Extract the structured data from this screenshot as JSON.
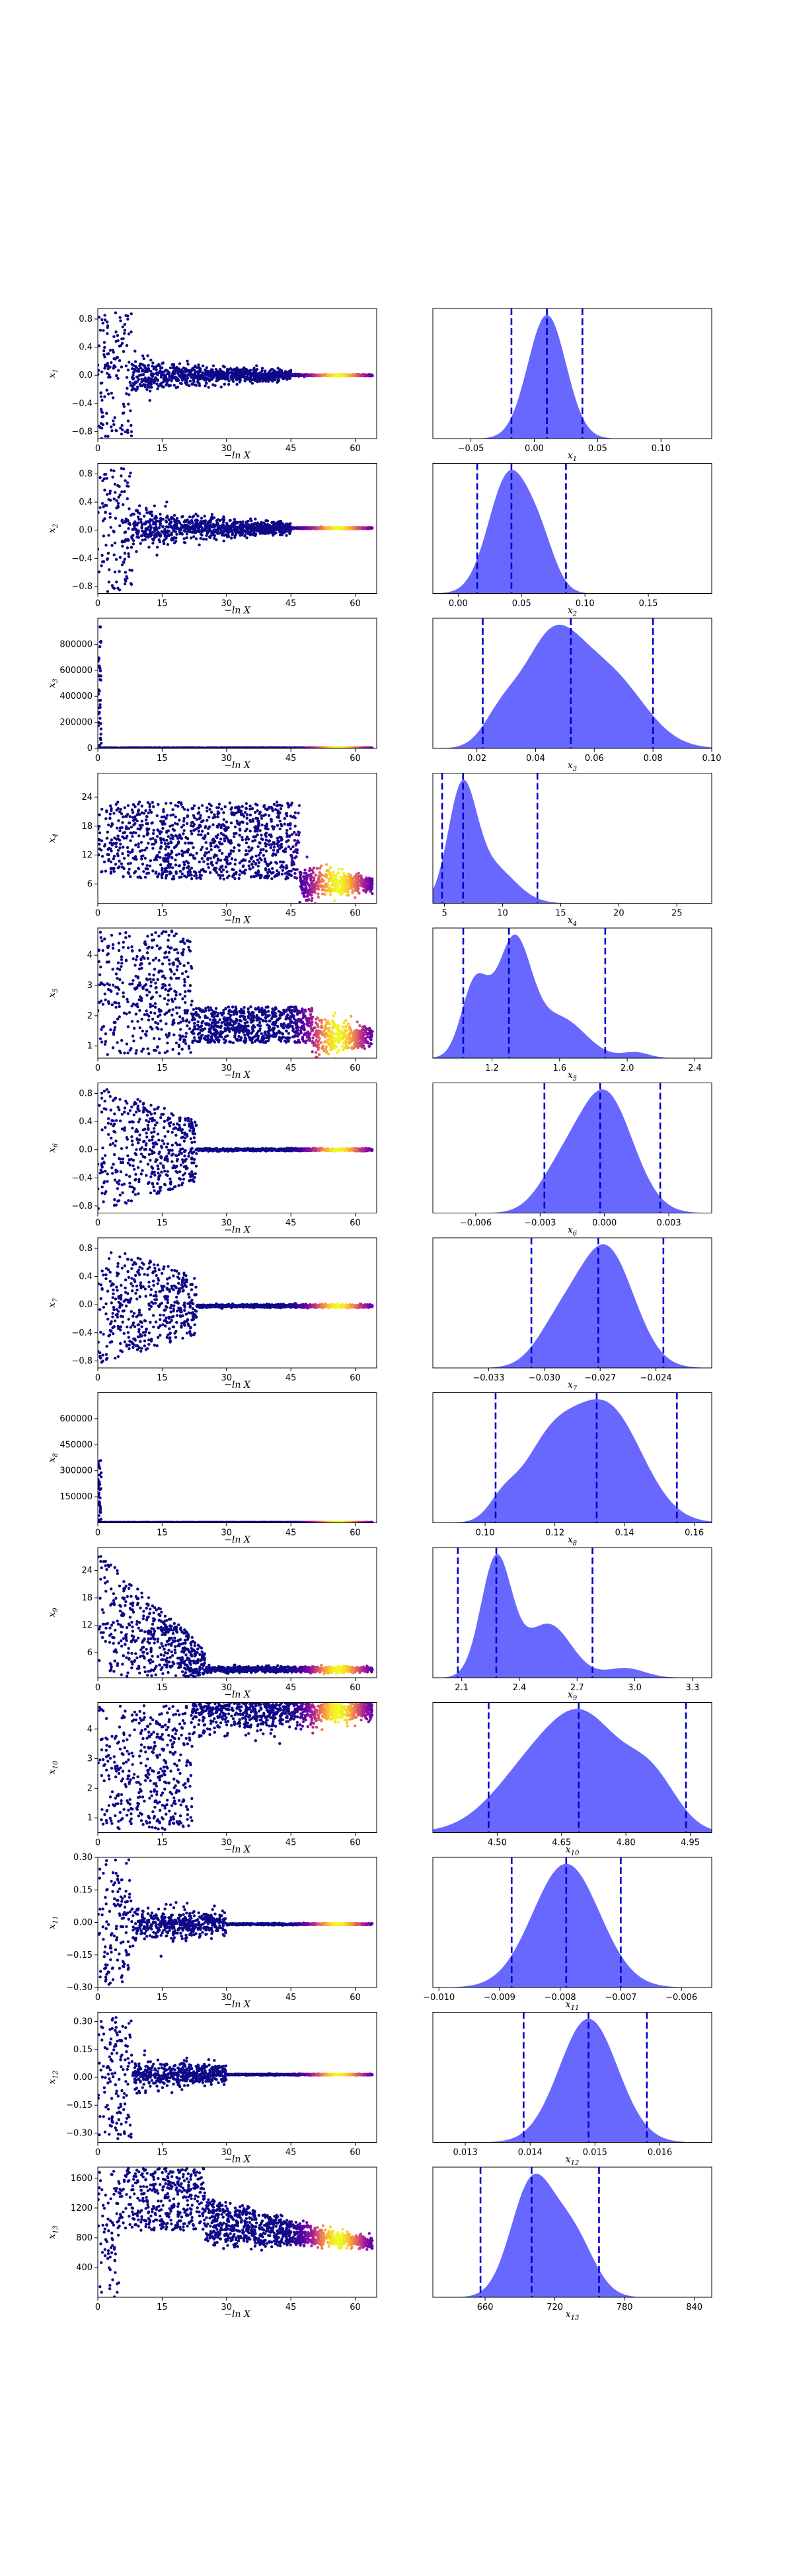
{
  "figure": {
    "kind": "dynesty traceplot",
    "left_xlabel": "−ln X",
    "trace_colormap": [
      "#0d0887",
      "#5c01a6",
      "#9c179e",
      "#cc4778",
      "#ed7953",
      "#fdb42f",
      "#f0f921"
    ],
    "density_color": "#5b5bff",
    "quantile_line_color": "#0000cc"
  },
  "chart_data": [
    {
      "type": "scatter",
      "param": "x1",
      "ylabel": "x1",
      "xlabel": "−ln X",
      "xlim": [
        0,
        65
      ],
      "xticks": [
        "0",
        "15",
        "30",
        "45",
        "60"
      ],
      "ylim": [
        -0.9,
        0.95
      ],
      "yticks": [
        -0.8,
        -0.4,
        0.0,
        0.4,
        0.8
      ],
      "ytick_labels": [
        "−0.8",
        "−0.4",
        "0.0",
        "0.4",
        "0.8"
      ],
      "trace": {
        "kind": "funnel",
        "early": 0.9,
        "mid": 0.25,
        "final": 0.0,
        "final_spread": 0.01,
        "mid_end": 45
      },
      "density": {
        "type": "area",
        "xlabel": "x1",
        "xlim": [
          -0.08,
          0.14
        ],
        "xticks": [
          -0.05,
          0.0,
          0.05,
          0.1
        ],
        "xtick_labels": [
          "−0.05",
          "0.00",
          "0.05",
          "0.10"
        ],
        "peaks": [
          [
            0.01,
            0.015,
            1
          ]
        ],
        "quantiles": [
          -0.018,
          0.01,
          0.038
        ]
      }
    },
    {
      "type": "scatter",
      "param": "x2",
      "ylabel": "x2",
      "xlabel": "−ln X",
      "xlim": [
        0,
        65
      ],
      "xticks": [
        "0",
        "15",
        "30",
        "45",
        "60"
      ],
      "ylim": [
        -0.9,
        0.95
      ],
      "yticks": [
        -0.8,
        -0.4,
        0.0,
        0.4,
        0.8
      ],
      "ytick_labels": [
        "−0.8",
        "−0.4",
        "0.0",
        "0.4",
        "0.8"
      ],
      "trace": {
        "kind": "funnel",
        "early": 0.9,
        "mid": 0.3,
        "final": 0.03,
        "final_spread": 0.01,
        "mid_end": 45
      },
      "density": {
        "type": "area",
        "xlabel": "x2",
        "xlim": [
          -0.02,
          0.2
        ],
        "xticks": [
          0.0,
          0.05,
          0.1,
          0.15
        ],
        "xtick_labels": [
          "0.00",
          "0.05",
          "0.10",
          "0.15"
        ],
        "peaks": [
          [
            0.04,
            0.016,
            1
          ],
          [
            0.065,
            0.012,
            0.35
          ]
        ],
        "quantiles": [
          0.015,
          0.042,
          0.085
        ]
      }
    },
    {
      "type": "scatter",
      "param": "x3",
      "ylabel": "x3",
      "xlabel": "−ln X",
      "xlim": [
        0,
        65
      ],
      "xticks": [
        "0",
        "15",
        "30",
        "45",
        "60"
      ],
      "ylim": [
        0,
        1000000
      ],
      "yticks": [
        0,
        200000,
        400000,
        600000,
        800000
      ],
      "ytick_labels": [
        "0",
        "200000",
        "400000",
        "600000",
        "800000"
      ],
      "trace": {
        "kind": "spike",
        "spike_top": 950000,
        "base": 0.05,
        "base_spread": 0.02
      },
      "density": {
        "type": "area",
        "xlabel": "x3",
        "xlim": [
          0.005,
          0.1
        ],
        "xticks": [
          0.02,
          0.04,
          0.06,
          0.08,
          0.1
        ],
        "xtick_labels": [
          "0.02",
          "0.04",
          "0.06",
          "0.08",
          "0.10"
        ],
        "peaks": [
          [
            0.045,
            0.01,
            1
          ],
          [
            0.065,
            0.012,
            0.7
          ],
          [
            0.028,
            0.006,
            0.25
          ]
        ],
        "quantiles": [
          0.022,
          0.052,
          0.08
        ]
      }
    },
    {
      "type": "scatter",
      "param": "x4",
      "ylabel": "x4",
      "xlabel": "−ln X",
      "xlim": [
        0,
        65
      ],
      "xticks": [
        "0",
        "15",
        "30",
        "45",
        "60"
      ],
      "ylim": [
        2,
        29
      ],
      "yticks": [
        6,
        12,
        18,
        24
      ],
      "ytick_labels": [
        "6",
        "12",
        "18",
        "24"
      ],
      "trace": {
        "kind": "band",
        "lo": 3,
        "hi": 28,
        "mid_center": 15,
        "mid_spread": 8,
        "final": 6,
        "final_spread": 1.5,
        "mid_end": 47
      },
      "density": {
        "type": "area",
        "xlabel": "x4",
        "xlim": [
          4,
          28
        ],
        "xticks": [
          5,
          10,
          15,
          20,
          25
        ],
        "xtick_labels": [
          "5",
          "10",
          "15",
          "20",
          "25"
        ],
        "peaks": [
          [
            6.5,
            1.2,
            1
          ],
          [
            9,
            2,
            0.35
          ]
        ],
        "quantiles": [
          4.8,
          6.6,
          13
        ]
      }
    },
    {
      "type": "scatter",
      "param": "x5",
      "ylabel": "x5",
      "xlabel": "−ln X",
      "xlim": [
        0,
        65
      ],
      "xticks": [
        "0",
        "15",
        "30",
        "45",
        "60"
      ],
      "ylim": [
        0.6,
        4.9
      ],
      "yticks": [
        1,
        2,
        3,
        4
      ],
      "ytick_labels": [
        "1",
        "2",
        "3",
        "4"
      ],
      "trace": {
        "kind": "band",
        "lo": 0.7,
        "hi": 4.8,
        "mid_center": 1.7,
        "mid_spread": 0.6,
        "final": 1.3,
        "final_spread": 0.3,
        "mid_end": 50,
        "early_end": 22
      },
      "density": {
        "type": "area",
        "xlabel": "x5",
        "xlim": [
          0.85,
          2.5
        ],
        "xticks": [
          1.2,
          1.6,
          2.0,
          2.4
        ],
        "xtick_labels": [
          "1.2",
          "1.6",
          "2.0",
          "2.4"
        ],
        "peaks": [
          [
            1.1,
            0.08,
            0.65
          ],
          [
            1.33,
            0.1,
            1
          ],
          [
            1.6,
            0.15,
            0.35
          ],
          [
            2.05,
            0.08,
            0.05
          ]
        ],
        "quantiles": [
          1.03,
          1.3,
          1.87
        ]
      }
    },
    {
      "type": "scatter",
      "param": "x6",
      "ylabel": "x6",
      "xlabel": "−ln X",
      "xlim": [
        0,
        65
      ],
      "xticks": [
        "0",
        "15",
        "30",
        "45",
        "60"
      ],
      "ylim": [
        -0.9,
        0.95
      ],
      "yticks": [
        -0.8,
        -0.4,
        0.0,
        0.4,
        0.8
      ],
      "ytick_labels": [
        "−0.8",
        "−0.4",
        "0.0",
        "0.4",
        "0.8"
      ],
      "trace": {
        "kind": "cutoff",
        "early": 0.9,
        "cut": 23,
        "final": 0.0,
        "final_spread": 0.008
      },
      "density": {
        "type": "area",
        "xlabel": "x6",
        "xlim": [
          -0.008,
          0.005
        ],
        "xticks": [
          -0.006,
          -0.003,
          0.0,
          0.003
        ],
        "xtick_labels": [
          "−0.006",
          "−0.003",
          "0.000",
          "0.003"
        ],
        "peaks": [
          [
            0.0,
            0.0013,
            1
          ],
          [
            -0.0022,
            0.001,
            0.25
          ]
        ],
        "quantiles": [
          -0.0028,
          -0.0002,
          0.0026
        ]
      }
    },
    {
      "type": "scatter",
      "param": "x7",
      "ylabel": "x7",
      "xlabel": "−ln X",
      "xlim": [
        0,
        65
      ],
      "xticks": [
        "0",
        "15",
        "30",
        "45",
        "60"
      ],
      "ylim": [
        -0.9,
        0.95
      ],
      "yticks": [
        -0.8,
        -0.4,
        0.0,
        0.4,
        0.8
      ],
      "ytick_labels": [
        "−0.8",
        "−0.4",
        "0.0",
        "0.4",
        "0.8"
      ],
      "trace": {
        "kind": "cutoff",
        "early": 0.85,
        "cut": 23,
        "final": -0.02,
        "final_spread": 0.01
      },
      "density": {
        "type": "area",
        "xlabel": "x7",
        "xlim": [
          -0.036,
          -0.021
        ],
        "xticks": [
          -0.033,
          -0.03,
          -0.027,
          -0.024
        ],
        "xtick_labels": [
          "−0.033",
          "−0.030",
          "−0.027",
          "−0.024"
        ],
        "peaks": [
          [
            -0.0267,
            0.0015,
            1
          ],
          [
            -0.0293,
            0.0012,
            0.3
          ]
        ],
        "quantiles": [
          -0.0307,
          -0.0271,
          -0.0236
        ]
      }
    },
    {
      "type": "scatter",
      "param": "x8",
      "ylabel": "x8",
      "xlabel": "−ln X",
      "xlim": [
        0,
        65
      ],
      "xticks": [
        "0",
        "15",
        "30",
        "45",
        "60"
      ],
      "ylim": [
        0,
        750000
      ],
      "yticks": [
        150000,
        300000,
        450000,
        600000
      ],
      "ytick_labels": [
        "150000",
        "300000",
        "450000",
        "600000"
      ],
      "trace": {
        "kind": "spike",
        "spike_top": 360000,
        "base": 0.13,
        "base_spread": 0.02
      },
      "density": {
        "type": "area",
        "xlabel": "x8",
        "xlim": [
          0.085,
          0.165
        ],
        "xticks": [
          0.1,
          0.12,
          0.14,
          0.16
        ],
        "xtick_labels": [
          "0.10",
          "0.12",
          "0.14",
          "0.16"
        ],
        "peaks": [
          [
            0.135,
            0.01,
            1
          ],
          [
            0.118,
            0.008,
            0.6
          ],
          [
            0.105,
            0.004,
            0.15
          ]
        ],
        "quantiles": [
          0.103,
          0.132,
          0.155
        ]
      }
    },
    {
      "type": "scatter",
      "param": "x9",
      "ylabel": "x9",
      "xlabel": "−ln X",
      "xlim": [
        0,
        65
      ],
      "xticks": [
        "0",
        "15",
        "30",
        "45",
        "60"
      ],
      "ylim": [
        0.5,
        29
      ],
      "yticks": [
        6,
        12,
        18,
        24
      ],
      "ytick_labels": [
        "6",
        "12",
        "18",
        "24"
      ],
      "trace": {
        "kind": "cutoff",
        "early": 28,
        "early_lo": 0.7,
        "cut": 25,
        "final": 2.3,
        "final_spread": 0.3,
        "decay": true
      },
      "density": {
        "type": "area",
        "xlabel": "x9",
        "xlim": [
          1.95,
          3.4
        ],
        "xticks": [
          2.1,
          2.4,
          2.7,
          3.0,
          3.3
        ],
        "xtick_labels": [
          "2.1",
          "2.4",
          "2.7",
          "3.0",
          "3.3"
        ],
        "peaks": [
          [
            2.28,
            0.08,
            1
          ],
          [
            2.55,
            0.12,
            0.45
          ],
          [
            2.95,
            0.1,
            0.08
          ]
        ],
        "quantiles": [
          2.08,
          2.28,
          2.78
        ]
      }
    },
    {
      "type": "scatter",
      "param": "x10",
      "ylabel": "x10",
      "xlabel": "−ln X",
      "xlim": [
        0,
        65
      ],
      "xticks": [
        "0",
        "15",
        "30",
        "45",
        "60"
      ],
      "ylim": [
        0.5,
        4.9
      ],
      "yticks": [
        1,
        2,
        3,
        4
      ],
      "ytick_labels": [
        "1",
        "2",
        "3",
        "4"
      ],
      "trace": {
        "kind": "rise",
        "lo": 0.6,
        "hi": 4.8,
        "final": 4.65,
        "final_spread": 0.15,
        "rise_end": 22
      },
      "density": {
        "type": "area",
        "xlabel": "x10",
        "xlim": [
          4.35,
          5.0
        ],
        "xticks": [
          4.5,
          4.65,
          4.8,
          4.95
        ],
        "xtick_labels": [
          "4.50",
          "4.65",
          "4.80",
          "4.95"
        ],
        "peaks": [
          [
            4.6,
            0.1,
            0.85
          ],
          [
            4.72,
            0.08,
            0.95
          ],
          [
            4.86,
            0.06,
            0.6
          ]
        ],
        "quantiles": [
          4.48,
          4.69,
          4.94
        ]
      }
    },
    {
      "type": "scatter",
      "param": "x11",
      "ylabel": "x11",
      "xlabel": "−ln X",
      "xlim": [
        0,
        65
      ],
      "xticks": [
        "0",
        "15",
        "30",
        "45",
        "60"
      ],
      "ylim": [
        -0.3,
        0.3
      ],
      "yticks": [
        -0.3,
        -0.15,
        0.0,
        0.15,
        0.3
      ],
      "ytick_labels": [
        "−0.30",
        "−0.15",
        "0.00",
        "0.15",
        "0.30"
      ],
      "trace": {
        "kind": "funnel",
        "early": 0.29,
        "mid": 0.05,
        "final": -0.008,
        "final_spread": 0.003,
        "mid_end": 30
      },
      "density": {
        "type": "area",
        "xlabel": "x11",
        "xlim": [
          -0.0101,
          -0.0055
        ],
        "xticks": [
          -0.01,
          -0.009,
          -0.008,
          -0.007,
          -0.006
        ],
        "xtick_labels": [
          "−0.010",
          "−0.009",
          "−0.008",
          "−0.007",
          "−0.006"
        ],
        "peaks": [
          [
            -0.0079,
            0.00055,
            1
          ]
        ],
        "quantiles": [
          -0.0088,
          -0.0079,
          -0.007
        ]
      }
    },
    {
      "type": "scatter",
      "param": "x12",
      "ylabel": "x12",
      "xlabel": "−ln X",
      "xlim": [
        0,
        65
      ],
      "xticks": [
        "0",
        "15",
        "30",
        "45",
        "60"
      ],
      "ylim": [
        -0.35,
        0.35
      ],
      "yticks": [
        -0.3,
        -0.15,
        0.0,
        0.15,
        0.3
      ],
      "ytick_labels": [
        "−0.30",
        "−0.15",
        "0.00",
        "0.15",
        "0.30"
      ],
      "trace": {
        "kind": "funnel",
        "early": 0.33,
        "mid": 0.05,
        "final": 0.015,
        "final_spread": 0.003,
        "mid_end": 30
      },
      "density": {
        "type": "area",
        "xlabel": "x12",
        "xlim": [
          0.0125,
          0.0168
        ],
        "xticks": [
          0.013,
          0.014,
          0.015,
          0.016
        ],
        "xtick_labels": [
          "0.013",
          "0.014",
          "0.015",
          "0.016"
        ],
        "peaks": [
          [
            0.0149,
            0.00045,
            1
          ]
        ],
        "quantiles": [
          0.0139,
          0.0149,
          0.0158
        ]
      }
    },
    {
      "type": "scatter",
      "param": "x13",
      "ylabel": "x13",
      "xlabel": "−ln X",
      "xlim": [
        0,
        65
      ],
      "xticks": [
        "0",
        "15",
        "30",
        "45",
        "60"
      ],
      "ylim": [
        0,
        1750
      ],
      "yticks": [
        400,
        800,
        1200,
        1600
      ],
      "ytick_labels": [
        "400",
        "800",
        "1200",
        "1600"
      ],
      "trace": {
        "kind": "rise13",
        "lo": 0,
        "hi": 1740,
        "final": 720,
        "final_spread": 40
      },
      "density": {
        "type": "area",
        "xlabel": "x13",
        "xlim": [
          615,
          855
        ],
        "xticks": [
          660,
          720,
          780,
          840
        ],
        "xtick_labels": [
          "660",
          "720",
          "780",
          "840"
        ],
        "peaks": [
          [
            700,
            18,
            1
          ],
          [
            735,
            18,
            0.55
          ]
        ],
        "quantiles": [
          656,
          700,
          758
        ]
      }
    }
  ]
}
